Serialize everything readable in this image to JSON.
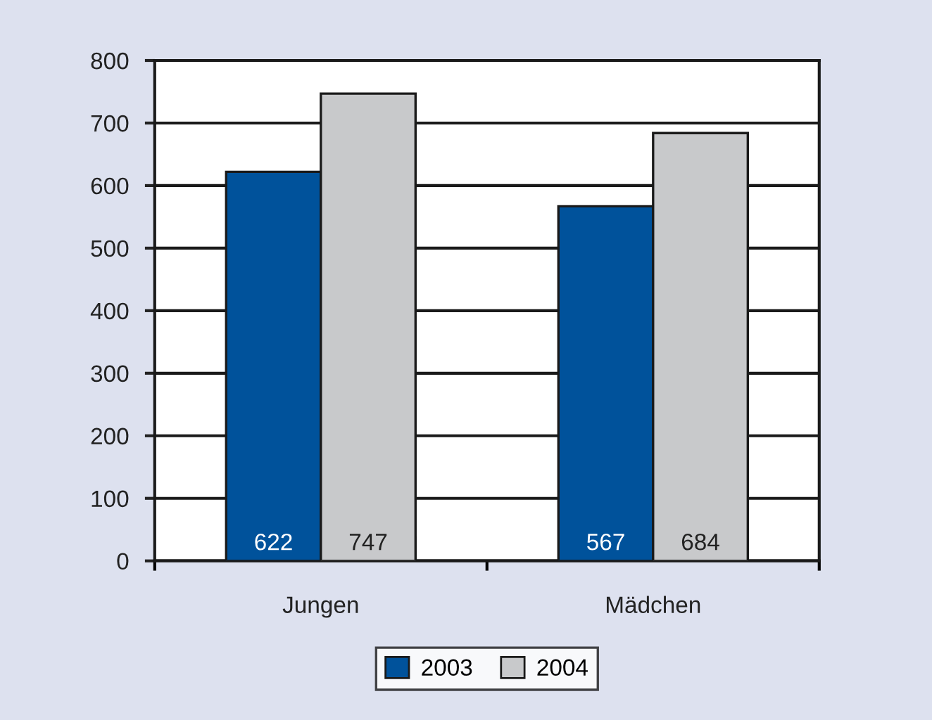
{
  "chart_data": {
    "type": "bar",
    "categories": [
      "Jungen",
      "Mädchen"
    ],
    "series": [
      {
        "name": "2003",
        "color": "#00529b",
        "values": [
          622,
          567
        ]
      },
      {
        "name": "2004",
        "color": "#c8c9cb",
        "values": [
          747,
          684
        ]
      }
    ],
    "ylim": [
      0,
      800
    ],
    "yticks": [
      0,
      100,
      200,
      300,
      400,
      500,
      600,
      700,
      800
    ],
    "grid": "y",
    "legend": "bottom",
    "data_labels": true
  }
}
